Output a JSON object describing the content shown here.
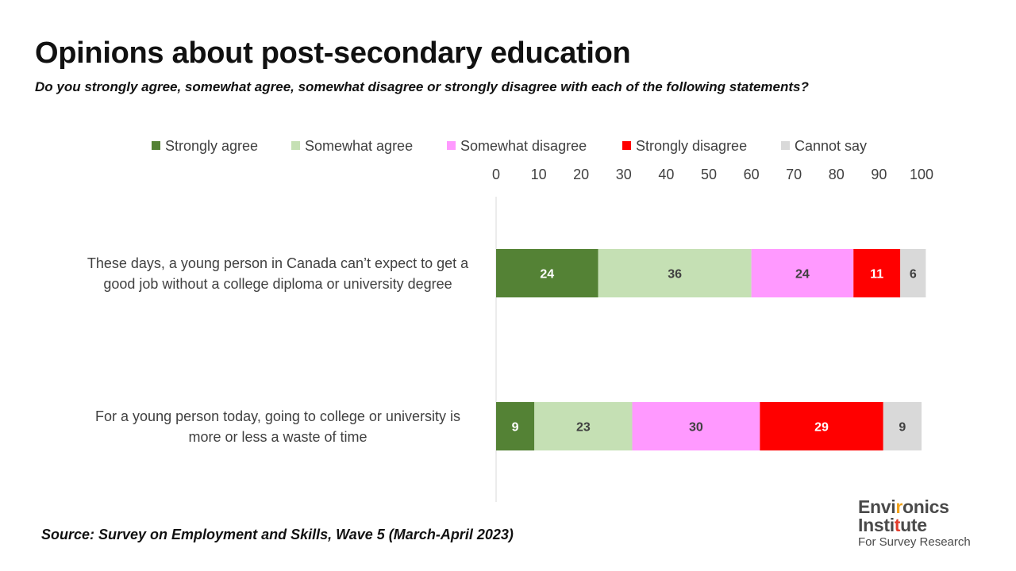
{
  "title": "Opinions about post-secondary education",
  "subtitle": "Do you strongly agree, somewhat agree, somewhat disagree or strongly disagree with each of the following statements?",
  "source": "Source: Survey on Employment and Skills, Wave 5 (March-April 2023)",
  "logo": {
    "line1": "Environics",
    "line2": "Institute",
    "line3": "For Survey Research",
    "accent_colors": [
      "#f2a31b",
      "#e23b2a",
      "#3aa0d8"
    ]
  },
  "chart_data": {
    "type": "bar",
    "orientation": "horizontal",
    "stacked": true,
    "categories": [
      [
        "These days, a young person in Canada can’t expect to get a",
        "good job without a college diploma or university degree"
      ],
      [
        "For a young person today, going to college or university is",
        "more or less a waste of time"
      ]
    ],
    "series": [
      {
        "name": "Strongly agree",
        "color": "#548235",
        "label_color": "#ffffff",
        "values": [
          24,
          9
        ]
      },
      {
        "name": "Somewhat agree",
        "color": "#c5e0b4",
        "label_color": "#404040",
        "values": [
          36,
          23
        ]
      },
      {
        "name": "Somewhat disagree",
        "color": "#ff99ff",
        "label_color": "#404040",
        "values": [
          24,
          30
        ]
      },
      {
        "name": "Strongly disagree",
        "color": "#ff0000",
        "label_color": "#ffffff",
        "values": [
          11,
          29
        ]
      },
      {
        "name": "Cannot say",
        "color": "#d9d9d9",
        "label_color": "#404040",
        "values": [
          6,
          9
        ]
      }
    ],
    "xlim": [
      0,
      100
    ],
    "xticks": [
      0,
      10,
      20,
      30,
      40,
      50,
      60,
      70,
      80,
      90,
      100
    ],
    "axis_position": "top",
    "legend_position": "top",
    "grid": false
  }
}
